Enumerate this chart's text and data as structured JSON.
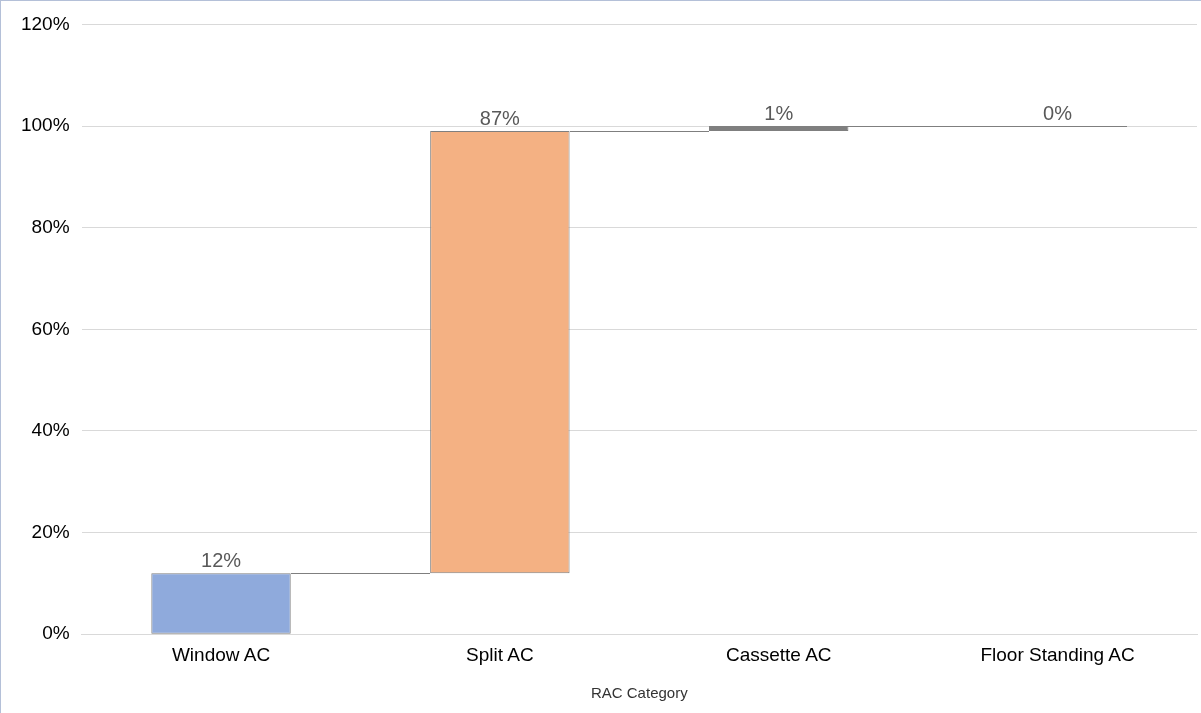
{
  "chart_data": {
    "type": "bar",
    "xlabel": "RAC Category",
    "categories": [
      "Window AC",
      "Split AC",
      "Cassette AC",
      "Floor Standing AC"
    ],
    "values": [
      12,
      87,
      1,
      0
    ],
    "base": [
      0,
      12,
      99,
      100
    ],
    "colors": [
      "#8faadc",
      "#f4b183",
      "#7f7f7f",
      "#7f7f7f"
    ],
    "value_labels": [
      "12%",
      "87%",
      "1%",
      "0%"
    ],
    "ylim": [
      0,
      120
    ],
    "yticks": [
      {
        "value": 0,
        "label": "0%"
      },
      {
        "value": 20,
        "label": "20%"
      },
      {
        "value": 40,
        "label": "40%"
      },
      {
        "value": 60,
        "label": "60%"
      },
      {
        "value": 80,
        "label": "80%"
      },
      {
        "value": 100,
        "label": "100%"
      },
      {
        "value": 120,
        "label": "120%"
      }
    ],
    "grid": "y",
    "legend": false
  }
}
